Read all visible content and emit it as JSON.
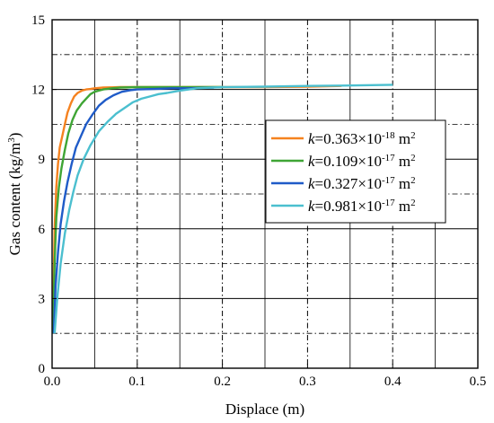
{
  "chart_data": {
    "type": "line",
    "xlabel": "Displace (m)",
    "ylabel_main": "Gas content (kg/m",
    "ylabel_sup": "3",
    "ylabel_close": ")",
    "xlim": [
      0,
      0.5
    ],
    "ylim": [
      0,
      15
    ],
    "xticks": [
      0.0,
      0.1,
      0.2,
      0.3,
      0.4,
      0.5
    ],
    "xtick_labels": [
      "0.0",
      "0.1",
      "0.2",
      "0.3",
      "0.4",
      "0.5"
    ],
    "yticks": [
      0,
      3,
      6,
      9,
      12,
      15
    ],
    "ytick_labels": [
      "0",
      "3",
      "6",
      "9",
      "12",
      "15"
    ],
    "grid": true,
    "legend_position": "right-middle",
    "series": [
      {
        "name": "k=0.363×10-18 m2",
        "legend": {
          "k": "k",
          "coef": "=0.363×10",
          "exp": "-18",
          "unit": " m",
          "unit_exp": "2"
        },
        "color": "#f5821f",
        "x": [
          0.001,
          0.002,
          0.003,
          0.005,
          0.007,
          0.009,
          0.012,
          0.015,
          0.018,
          0.022,
          0.026,
          0.03,
          0.035,
          0.04,
          0.045,
          0.05,
          0.06,
          0.08,
          0.1,
          0.15,
          0.2,
          0.25,
          0.3,
          0.34
        ],
        "y": [
          1.5,
          4.0,
          6.0,
          7.8,
          8.8,
          9.5,
          10.0,
          10.5,
          11.0,
          11.4,
          11.7,
          11.85,
          11.95,
          12.0,
          12.02,
          12.05,
          12.08,
          12.1,
          12.1,
          12.1,
          12.1,
          12.1,
          12.12,
          12.15
        ]
      },
      {
        "name": "k=0.109×10-17 m2",
        "legend": {
          "k": "k",
          "coef": "=0.109×10",
          "exp": "-17",
          "unit": " m",
          "unit_exp": "2"
        },
        "color": "#3fa535",
        "x": [
          0.001,
          0.003,
          0.005,
          0.008,
          0.011,
          0.015,
          0.019,
          0.024,
          0.029,
          0.035,
          0.04,
          0.045,
          0.05,
          0.055,
          0.06,
          0.07,
          0.08,
          0.1,
          0.15,
          0.2
        ],
        "y": [
          1.5,
          4.5,
          6.5,
          7.8,
          8.6,
          9.4,
          10.1,
          10.7,
          11.1,
          11.4,
          11.6,
          11.8,
          11.9,
          11.95,
          12.0,
          12.05,
          12.08,
          12.1,
          12.1,
          12.1
        ]
      },
      {
        "name": "k=0.327×10-17 m2",
        "legend": {
          "k": "k",
          "coef": "=0.327×10",
          "exp": "-17",
          "unit": " m",
          "unit_exp": "2"
        },
        "color": "#1f5bc8",
        "x": [
          0.002,
          0.004,
          0.007,
          0.01,
          0.014,
          0.018,
          0.023,
          0.028,
          0.034,
          0.04,
          0.047,
          0.055,
          0.063,
          0.072,
          0.082,
          0.092,
          0.1,
          0.12,
          0.14,
          0.16,
          0.19
        ],
        "y": [
          1.5,
          3.5,
          5.0,
          6.2,
          7.2,
          8.0,
          8.8,
          9.5,
          10.0,
          10.5,
          10.9,
          11.3,
          11.55,
          11.75,
          11.9,
          11.97,
          12.0,
          12.02,
          12.05,
          12.05,
          12.08
        ]
      },
      {
        "name": "k=0.981×10-17 m2",
        "legend": {
          "k": "k",
          "coef": "=0.981×10",
          "exp": "-17",
          "unit": " m",
          "unit_exp": "2"
        },
        "color": "#4bbfcf",
        "x": [
          0.003,
          0.006,
          0.01,
          0.015,
          0.02,
          0.025,
          0.03,
          0.037,
          0.045,
          0.055,
          0.065,
          0.075,
          0.085,
          0.095,
          0.105,
          0.115,
          0.125,
          0.135,
          0.15,
          0.17,
          0.2,
          0.25,
          0.3,
          0.35,
          0.4
        ],
        "y": [
          1.5,
          3.0,
          4.5,
          5.8,
          6.8,
          7.6,
          8.3,
          9.0,
          9.6,
          10.2,
          10.6,
          10.95,
          11.2,
          11.45,
          11.6,
          11.7,
          11.8,
          11.85,
          11.95,
          12.05,
          12.1,
          12.12,
          12.15,
          12.17,
          12.2
        ]
      }
    ]
  }
}
